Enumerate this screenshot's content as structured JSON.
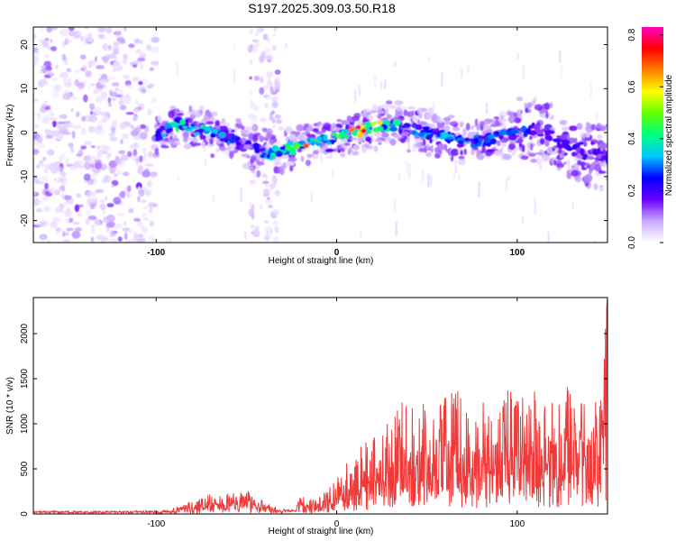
{
  "title": "S197.2025.309.03.50.R18",
  "chart_data": [
    {
      "type": "heatmap",
      "title": "S197.2025.309.03.50.R18",
      "xlabel": "Height of straight line (km)",
      "ylabel": "Frequency (Hz)",
      "xlim": [
        -168,
        150
      ],
      "ylim": [
        -25,
        24
      ],
      "xticks": [
        "-100",
        "0",
        "100"
      ],
      "xtick_values": [
        -100,
        0,
        100
      ],
      "yticks": [
        "-20",
        "-10",
        "0",
        "10",
        "20"
      ],
      "ytick_values": [
        -20,
        -10,
        0,
        10,
        20
      ],
      "colorbar": {
        "label": "Normalized spectral amplitude",
        "range": [
          0,
          0.83
        ],
        "ticks": [
          "0.0",
          "0.2",
          "0.4",
          "0.6",
          "0.8"
        ],
        "tick_values": [
          0.0,
          0.2,
          0.4,
          0.6,
          0.8
        ],
        "colors": [
          "#ffffff",
          "#c9a8ff",
          "#6a00ff",
          "#0000ff",
          "#00c8ff",
          "#00ff80",
          "#60ff00",
          "#ffff00",
          "#ff8000",
          "#ff0000",
          "#ff00c0"
        ]
      },
      "ridge": {
        "x": [
          -100,
          -90,
          -80,
          -70,
          -60,
          -50,
          -40,
          -30,
          -20,
          -10,
          0,
          10,
          20,
          30,
          40,
          50,
          60,
          70,
          80,
          90,
          100,
          110,
          120,
          130,
          140,
          150
        ],
        "freq": [
          -1,
          2,
          1,
          0,
          -1,
          -3,
          -5,
          -4,
          -3,
          -2,
          -1,
          0,
          1,
          2,
          1,
          0,
          -1,
          -2,
          -2,
          -1,
          0,
          1,
          -1,
          -4,
          -5,
          -5
        ],
        "amplitude": [
          0.35,
          0.45,
          0.4,
          0.4,
          0.35,
          0.2,
          0.35,
          0.45,
          0.55,
          0.5,
          0.45,
          0.8,
          0.55,
          0.45,
          0.35,
          0.35,
          0.35,
          0.35,
          0.35,
          0.3,
          0.35,
          0.3,
          0.25,
          0.25,
          0.2,
          0.2
        ]
      }
    },
    {
      "type": "line",
      "xlabel": "Height of straight line (km)",
      "ylabel": "SNR (10 * v/v)",
      "xlim": [
        -168,
        150
      ],
      "ylim": [
        0,
        2400
      ],
      "xticks": [
        "-100",
        "0",
        "100"
      ],
      "xtick_values": [
        -100,
        0,
        100
      ],
      "yticks": [
        "0",
        "500",
        "1000",
        "1500",
        "2000"
      ],
      "ytick_values": [
        0,
        500,
        1000,
        1500,
        2000
      ],
      "series": [
        {
          "name": "SNR",
          "color": "#f03a3a",
          "envelope_x": [
            -168,
            -150,
            -120,
            -100,
            -90,
            -80,
            -70,
            -60,
            -50,
            -40,
            -30,
            -20,
            -10,
            0,
            5,
            10,
            15,
            20,
            25,
            30,
            35,
            40,
            45,
            50,
            55,
            60,
            70,
            75,
            80,
            85,
            90,
            95,
            100,
            105,
            110,
            115,
            120,
            125,
            130,
            135,
            140,
            145,
            150
          ],
          "envelope_y": [
            25,
            25,
            25,
            30,
            70,
            150,
            220,
            230,
            270,
            150,
            40,
            200,
            180,
            380,
            560,
            600,
            820,
            850,
            900,
            1100,
            1300,
            1200,
            1320,
            1230,
            1250,
            1350,
            1370,
            1000,
            1300,
            1100,
            1100,
            1550,
            1340,
            1300,
            1450,
            1200,
            1450,
            1350,
            1500,
            1450,
            1650,
            1100,
            2400
          ]
        }
      ]
    }
  ]
}
